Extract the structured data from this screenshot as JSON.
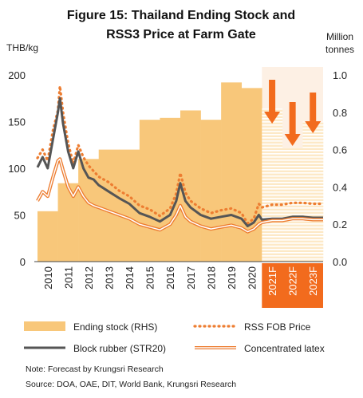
{
  "chart_data": {
    "type": "bar+line",
    "title_line1": "Figure 15: Thailand Ending Stock and",
    "title_line2": "RSS3 Price at Farm Gate",
    "y_left_unit": "THB/kg",
    "y_right_unit_line1": "Million",
    "y_right_unit_line2": "tonnes",
    "y_left_ticks": [
      "0",
      "50",
      "100",
      "150",
      "200"
    ],
    "y_right_ticks": [
      "0.0",
      "0.2",
      "0.4",
      "0.6",
      "0.8",
      "1.0"
    ],
    "ylim_left": [
      0,
      200
    ],
    "ylim_right": [
      0,
      1.0
    ],
    "x_labels": [
      "2010",
      "2011",
      "2012",
      "2013",
      "2014",
      "2015",
      "2016",
      "2017",
      "2018",
      "2019",
      "2020",
      "2021F",
      "2022F",
      "2023F"
    ],
    "forecast_labels": [
      "2021F",
      "2022F",
      "2023F"
    ],
    "ending_stock": {
      "name": "Ending stock (RHS)",
      "x": [
        2010,
        2011,
        2012,
        2013,
        2014,
        2015,
        2016,
        2017,
        2018,
        2019,
        2020,
        2021,
        2022,
        2023
      ],
      "values": [
        0.27,
        0.42,
        0.55,
        0.6,
        0.6,
        0.76,
        0.77,
        0.81,
        0.76,
        0.96,
        0.93,
        0.82,
        0.61,
        0.75
      ],
      "color": "#f8c77a",
      "forecast_color": "#fde3b8"
    },
    "series": [
      {
        "name": "RSS FOB Price",
        "color": "#ed7d31",
        "style": "dotted",
        "x": [
          2010.0,
          2010.25,
          2010.5,
          2010.75,
          2011.0,
          2011.1,
          2011.25,
          2011.5,
          2011.75,
          2012.0,
          2012.25,
          2012.5,
          2012.75,
          2013.0,
          2013.5,
          2014.0,
          2014.5,
          2015.0,
          2015.5,
          2016.0,
          2016.5,
          2016.8,
          2017.0,
          2017.25,
          2017.5,
          2018.0,
          2018.5,
          2019.0,
          2019.5,
          2020.0,
          2020.3,
          2020.6,
          2020.85,
          2021.0,
          2021.5,
          2022.0,
          2022.5,
          2023.0,
          2023.5,
          2024.0
        ],
        "y": [
          111,
          120,
          108,
          140,
          162,
          188,
          160,
          127,
          105,
          125,
          112,
          103,
          97,
          91,
          85,
          76,
          70,
          60,
          56,
          49,
          57,
          73,
          95,
          74,
          65,
          57,
          52,
          55,
          57,
          52,
          41,
          46,
          62,
          58,
          61,
          61,
          63,
          63,
          62,
          62
        ]
      },
      {
        "name": "Block rubber (STR20)",
        "color": "#555555",
        "style": "solid",
        "x": [
          2010.0,
          2010.25,
          2010.5,
          2010.75,
          2011.0,
          2011.1,
          2011.25,
          2011.5,
          2011.75,
          2012.0,
          2012.25,
          2012.5,
          2012.75,
          2013.0,
          2013.5,
          2014.0,
          2014.5,
          2015.0,
          2015.5,
          2016.0,
          2016.5,
          2016.8,
          2017.0,
          2017.25,
          2017.5,
          2018.0,
          2018.5,
          2019.0,
          2019.5,
          2020.0,
          2020.3,
          2020.6,
          2020.85,
          2021.0,
          2021.5,
          2022.0,
          2022.5,
          2023.0,
          2023.5,
          2024.0
        ],
        "y": [
          101,
          112,
          100,
          130,
          160,
          175,
          148,
          118,
          100,
          118,
          100,
          90,
          88,
          82,
          75,
          68,
          62,
          52,
          48,
          43,
          50,
          65,
          84,
          65,
          58,
          50,
          46,
          48,
          50,
          46,
          38,
          42,
          50,
          45,
          46,
          46,
          48,
          48,
          47,
          47
        ]
      },
      {
        "name": "Concentrated latex",
        "color": "#ed7d31",
        "style": "double",
        "x": [
          2010.0,
          2010.25,
          2010.5,
          2010.75,
          2011.0,
          2011.1,
          2011.25,
          2011.5,
          2011.75,
          2012.0,
          2012.25,
          2012.5,
          2012.75,
          2013.0,
          2013.5,
          2014.0,
          2014.5,
          2015.0,
          2015.5,
          2016.0,
          2016.5,
          2016.8,
          2017.0,
          2017.25,
          2017.5,
          2018.0,
          2018.5,
          2019.0,
          2019.5,
          2020.0,
          2020.3,
          2020.6,
          2020.85,
          2021.0,
          2021.5,
          2022.0,
          2022.5,
          2023.0,
          2023.5,
          2024.0
        ],
        "y": [
          65,
          75,
          70,
          90,
          108,
          110,
          98,
          80,
          70,
          80,
          70,
          63,
          60,
          58,
          54,
          50,
          46,
          40,
          37,
          34,
          40,
          50,
          60,
          48,
          43,
          38,
          35,
          37,
          39,
          36,
          32,
          35,
          40,
          42,
          44,
          44,
          46,
          46,
          45,
          45
        ]
      }
    ],
    "forecast_arrows": 3,
    "legend_position": "bottom",
    "grid": false,
    "note": "Note: Forecast by Krungsri Research",
    "source": "Source: DOA, OAE, DIT, World Bank, Krungsri Research"
  }
}
